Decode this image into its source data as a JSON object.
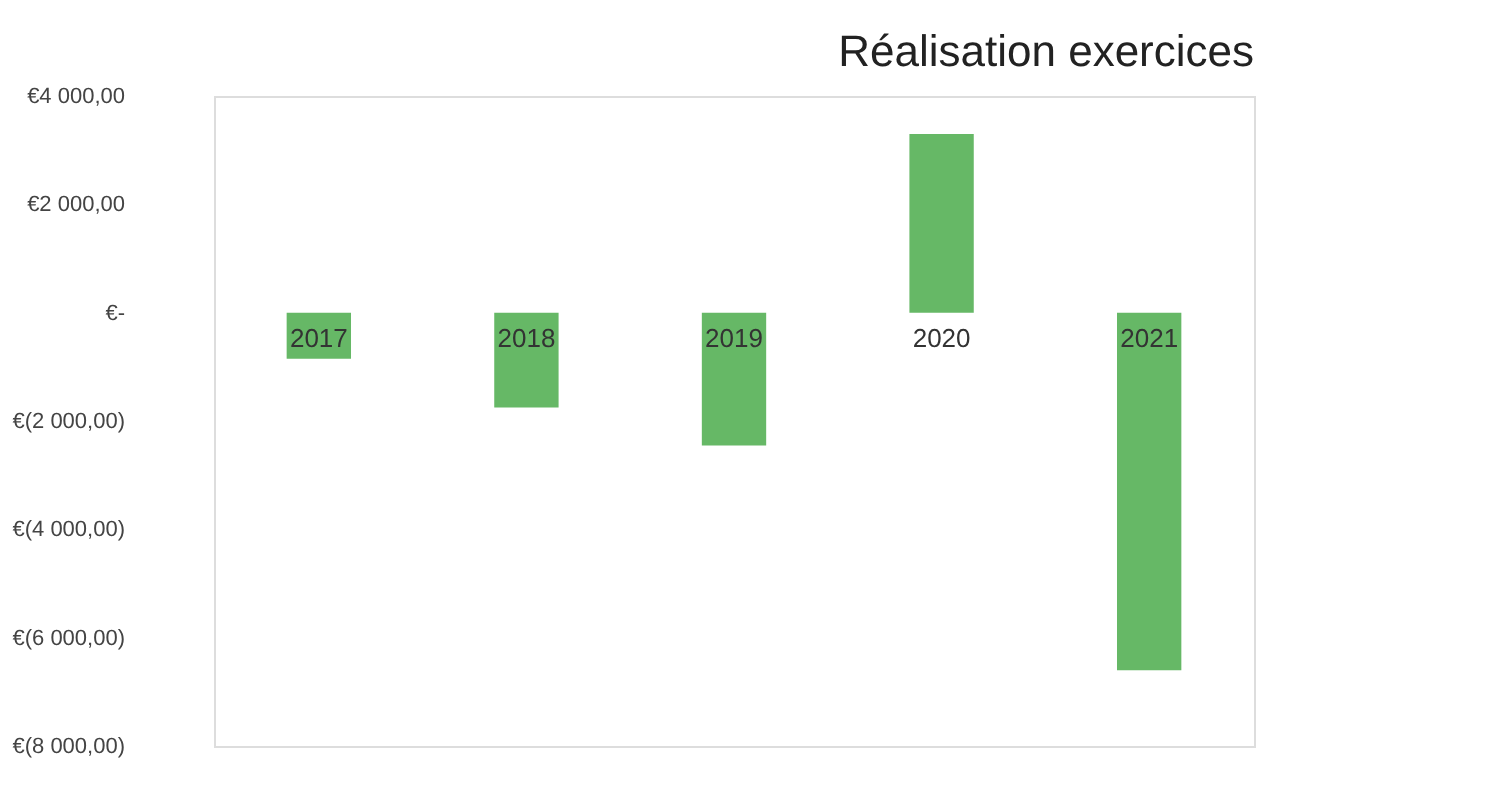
{
  "chart_data": {
    "type": "bar",
    "title": "Réalisation exercices",
    "categories": [
      "2017",
      "2018",
      "2019",
      "2020",
      "2021"
    ],
    "values": [
      -850,
      -1750,
      -2450,
      3300,
      -6600
    ],
    "color": "#66b866",
    "ylim": [
      -8000,
      4000
    ],
    "yticks": [
      {
        "value": 4000,
        "label": "€4 000,00"
      },
      {
        "value": 2000,
        "label": "€2 000,00"
      },
      {
        "value": 0,
        "label": "€-"
      },
      {
        "value": -2000,
        "label": "€(2 000,00)"
      },
      {
        "value": -4000,
        "label": "€(4 000,00)"
      },
      {
        "value": -6000,
        "label": "€(6 000,00)"
      },
      {
        "value": -8000,
        "label": "€(8 000,00)"
      }
    ],
    "grid": false
  }
}
